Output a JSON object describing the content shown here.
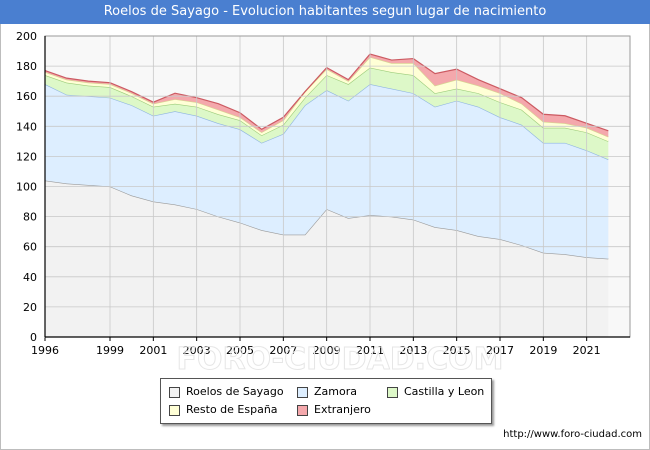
{
  "page": {
    "title": "Roelos de Sayago - Evolucion habitantes segun lugar de nacimiento",
    "url": "http://www.foro-ciudad.com",
    "watermark": "FORO-CIUDAD.COM"
  },
  "chart_data": {
    "type": "area",
    "stacked": true,
    "title": "Roelos de Sayago - Evolucion habitantes segun lugar de nacimiento",
    "xlabel": "",
    "ylabel": "",
    "xlim": [
      1996,
      2023
    ],
    "ylim": [
      0,
      200
    ],
    "grid": true,
    "legend_position": "bottom",
    "x_ticks": [
      1996,
      1999,
      2001,
      2003,
      2005,
      2007,
      2009,
      2011,
      2013,
      2015,
      2017,
      2019,
      2021
    ],
    "y_ticks": [
      0,
      20,
      40,
      60,
      80,
      100,
      120,
      140,
      160,
      180,
      200
    ],
    "x": [
      1996,
      1997,
      1998,
      1999,
      2000,
      2001,
      2002,
      2003,
      2004,
      2005,
      2006,
      2007,
      2008,
      2009,
      2010,
      2011,
      2012,
      2013,
      2014,
      2015,
      2016,
      2017,
      2018,
      2019,
      2020,
      2021,
      2022
    ],
    "series": [
      {
        "name": "Roelos de Sayago",
        "color": "#f2f2f2",
        "values": [
          104,
          102,
          101,
          100,
          94,
          90,
          88,
          85,
          80,
          76,
          71,
          68,
          68,
          85,
          79,
          81,
          80,
          78,
          73,
          71,
          67,
          65,
          61,
          56,
          55,
          53,
          52
        ]
      },
      {
        "name": "Zamora",
        "color": "#ddeeff",
        "values": [
          64,
          59,
          59,
          59,
          60,
          57,
          62,
          62,
          62,
          62,
          58,
          67,
          86,
          79,
          78,
          87,
          85,
          84,
          80,
          86,
          86,
          81,
          80,
          73,
          74,
          71,
          66
        ]
      },
      {
        "name": "Castilla y Leon",
        "color": "#ddf8c8",
        "values": [
          6,
          8,
          7,
          7,
          6,
          6,
          5,
          6,
          6,
          6,
          5,
          6,
          5,
          10,
          11,
          11,
          11,
          12,
          9,
          8,
          9,
          10,
          10,
          10,
          10,
          12,
          12
        ]
      },
      {
        "name": "Resto de España",
        "color": "#ffffd6",
        "values": [
          2,
          2,
          2,
          2,
          2,
          2,
          3,
          3,
          3,
          2,
          2,
          3,
          4,
          4,
          2,
          7,
          6,
          8,
          5,
          6,
          5,
          6,
          4,
          4,
          3,
          3,
          3
        ]
      },
      {
        "name": "Extranjero",
        "color": "#f4a8ac",
        "values": [
          1,
          1,
          1,
          1,
          1,
          1,
          4,
          3,
          4,
          3,
          2,
          2,
          0,
          1,
          1,
          2,
          2,
          3,
          8,
          7,
          4,
          3,
          4,
          5,
          5,
          3,
          4
        ]
      }
    ]
  }
}
